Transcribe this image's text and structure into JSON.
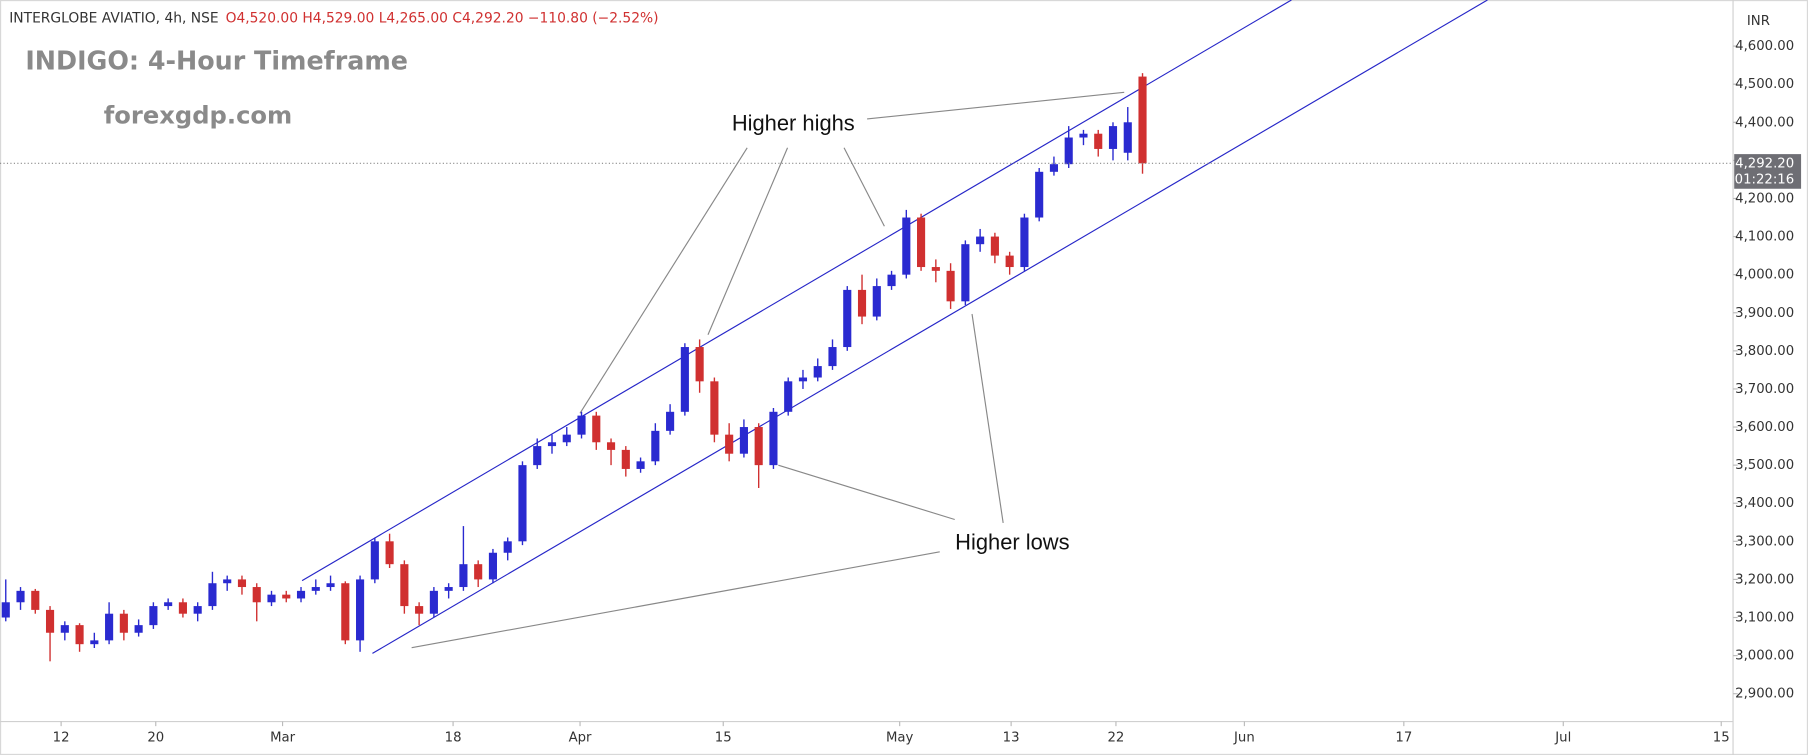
{
  "chart_data": {
    "type": "candlestick",
    "header": {
      "symbol": "INTERGLOBE AVIATIO, 4h, NSE",
      "ohlc": "O4,520.00 H4,529.00 L4,265.00 C4,292.20 −110.80 (−2.52%)"
    },
    "title": "INDIGO: 4-Hour Timeframe",
    "watermark": "forexgdp.com",
    "currency": "INR",
    "last_price_label": "4,292.20",
    "countdown": "01:22:16",
    "annotations": [
      "Higher highs",
      "Higher lows"
    ],
    "up_color": "#2a2ad0",
    "down_color": "#d03030",
    "grid": false,
    "open": [
      3100,
      3140,
      3170,
      3120,
      3060,
      3080,
      3030,
      3040,
      3110,
      3060,
      3080,
      3130,
      3140,
      3110,
      3130,
      3190,
      3200,
      3180,
      3140,
      3160,
      3150,
      3170,
      3180,
      3190,
      3040,
      3200,
      3300,
      3240,
      3130,
      3110,
      3170,
      3180,
      3240,
      3200,
      3270,
      3300,
      3500,
      3550,
      3560,
      3580,
      3630,
      3560,
      3540,
      3490,
      3510,
      3590,
      3640,
      3810,
      3720,
      3580,
      3530,
      3600,
      3500,
      3640,
      3720,
      3730,
      3760,
      3810,
      3960,
      3890,
      3970,
      4000,
      4150,
      4020,
      4010,
      3930,
      4080,
      4100,
      4050,
      4020,
      4150,
      4270,
      4290,
      4360,
      4370,
      4330,
      4320,
      4520
    ],
    "high": [
      3200,
      3180,
      3175,
      3130,
      3090,
      3085,
      3060,
      3140,
      3120,
      3095,
      3140,
      3150,
      3150,
      3140,
      3220,
      3210,
      3210,
      3190,
      3170,
      3170,
      3180,
      3200,
      3210,
      3195,
      3210,
      3310,
      3320,
      3250,
      3140,
      3180,
      3190,
      3340,
      3250,
      3280,
      3310,
      3510,
      3570,
      3580,
      3600,
      3640,
      3640,
      3570,
      3550,
      3520,
      3610,
      3660,
      3820,
      3830,
      3730,
      3610,
      3620,
      3610,
      3650,
      3730,
      3750,
      3780,
      3830,
      3970,
      4000,
      3990,
      4010,
      4170,
      4160,
      4040,
      4030,
      4090,
      4120,
      4110,
      4060,
      4160,
      4280,
      4310,
      4390,
      4380,
      4380,
      4400,
      4440,
      4529
    ],
    "low": [
      3090,
      3120,
      3110,
      2985,
      3040,
      3010,
      3020,
      3030,
      3040,
      3050,
      3070,
      3120,
      3100,
      3090,
      3120,
      3170,
      3160,
      3090,
      3130,
      3140,
      3140,
      3160,
      3170,
      3030,
      3010,
      3190,
      3230,
      3110,
      3080,
      3100,
      3150,
      3170,
      3180,
      3190,
      3250,
      3290,
      3490,
      3530,
      3550,
      3570,
      3540,
      3500,
      3470,
      3480,
      3500,
      3580,
      3630,
      3690,
      3560,
      3510,
      3520,
      3440,
      3490,
      3630,
      3700,
      3720,
      3750,
      3800,
      3870,
      3880,
      3960,
      3990,
      4010,
      3980,
      3910,
      3920,
      4060,
      4030,
      4000,
      4010,
      4140,
      4260,
      4280,
      4340,
      4310,
      4300,
      4300,
      4265
    ],
    "close": [
      3140,
      3170,
      3120,
      3060,
      3080,
      3030,
      3040,
      3110,
      3060,
      3080,
      3130,
      3140,
      3110,
      3130,
      3190,
      3200,
      3180,
      3140,
      3160,
      3150,
      3170,
      3180,
      3190,
      3040,
      3200,
      3300,
      3240,
      3130,
      3110,
      3170,
      3180,
      3240,
      3200,
      3270,
      3300,
      3500,
      3550,
      3560,
      3580,
      3630,
      3560,
      3540,
      3490,
      3510,
      3590,
      3640,
      3810,
      3720,
      3580,
      3530,
      3600,
      3500,
      3640,
      3720,
      3730,
      3760,
      3810,
      3960,
      3890,
      3970,
      4000,
      4150,
      4020,
      4010,
      3930,
      4080,
      4100,
      4050,
      4020,
      4150,
      4270,
      4290,
      4360,
      4370,
      4330,
      4390,
      4400,
      4292.2
    ],
    "xlim": [
      -0.39,
      117
    ],
    "xticks": [
      {
        "value": 3.75,
        "label": "12"
      },
      {
        "value": 10.16,
        "label": "20"
      },
      {
        "value": 18.75,
        "label": "Mar"
      },
      {
        "value": 30.3,
        "label": "18"
      },
      {
        "value": 38.9,
        "label": "Apr"
      },
      {
        "value": 48.6,
        "label": "15"
      },
      {
        "value": 60.55,
        "label": "May"
      },
      {
        "value": 68.1,
        "label": "13"
      },
      {
        "value": 75.2,
        "label": "22"
      },
      {
        "value": 83.9,
        "label": "Jun"
      },
      {
        "value": 94.7,
        "label": "17"
      },
      {
        "value": 105.5,
        "label": "Jul"
      },
      {
        "value": 116.2,
        "label": "15"
      }
    ],
    "ylim": [
      2830,
      4721
    ],
    "yticks": [
      {
        "value": 2900,
        "label": "2,900.00"
      },
      {
        "value": 3000,
        "label": "3,000.00"
      },
      {
        "value": 3100,
        "label": "3,100.00"
      },
      {
        "value": 3200,
        "label": "3,200.00"
      },
      {
        "value": 3300,
        "label": "3,300.00"
      },
      {
        "value": 3400,
        "label": "3,400.00"
      },
      {
        "value": 3500,
        "label": "3,500.00"
      },
      {
        "value": 3600,
        "label": "3,600.00"
      },
      {
        "value": 3700,
        "label": "3,700.00"
      },
      {
        "value": 3800,
        "label": "3,800.00"
      },
      {
        "value": 3900,
        "label": "3,900.00"
      },
      {
        "value": 4000,
        "label": "4,000.00"
      },
      {
        "value": 4100,
        "label": "4,100.00"
      },
      {
        "value": 4200,
        "label": "4,200.00"
      },
      {
        "value": 4300,
        "label": "4,300.00"
      },
      {
        "value": 4400,
        "label": "4,400.00"
      },
      {
        "value": 4500,
        "label": "4,500.00"
      },
      {
        "value": 4600,
        "label": "4,600.00"
      }
    ]
  }
}
